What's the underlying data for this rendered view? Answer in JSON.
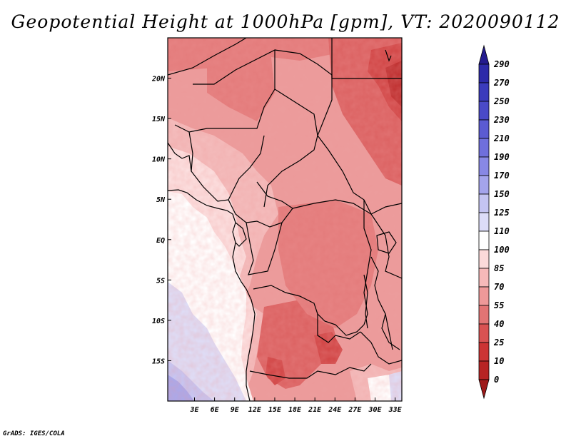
{
  "title": "Geopotential Height at 1000hPa [gpm], VT: 2020090112",
  "credit": "GrADS: IGES/COLA",
  "map": {
    "lon_range": [
      -1,
      34
    ],
    "lat_range": [
      -20,
      25
    ],
    "x_ticks": [
      {
        "lon": 3,
        "label": "3E"
      },
      {
        "lon": 6,
        "label": "6E"
      },
      {
        "lon": 9,
        "label": "9E"
      },
      {
        "lon": 12,
        "label": "12E"
      },
      {
        "lon": 15,
        "label": "15E"
      },
      {
        "lon": 18,
        "label": "18E"
      },
      {
        "lon": 21,
        "label": "21E"
      },
      {
        "lon": 24,
        "label": "24E"
      },
      {
        "lon": 27,
        "label": "27E"
      },
      {
        "lon": 30,
        "label": "30E"
      },
      {
        "lon": 33,
        "label": "33E"
      }
    ],
    "y_ticks": [
      {
        "lat": 20,
        "label": "20N"
      },
      {
        "lat": 15,
        "label": "15N"
      },
      {
        "lat": 10,
        "label": "10N"
      },
      {
        "lat": 5,
        "label": "5N"
      },
      {
        "lat": 0,
        "label": "EQ"
      },
      {
        "lat": -5,
        "label": "5S"
      },
      {
        "lat": -10,
        "label": "10S"
      },
      {
        "lat": -15,
        "label": "15S"
      }
    ]
  },
  "colorbar": {
    "levels": [
      "290",
      "270",
      "250",
      "230",
      "210",
      "190",
      "170",
      "150",
      "125",
      "110",
      "100",
      "85",
      "70",
      "55",
      "40",
      "25",
      "10",
      "0"
    ],
    "colors": [
      "#241b8f",
      "#2d2aa9",
      "#3b3bbc",
      "#4a4ac8",
      "#5b5bd2",
      "#6f6fdc",
      "#8888e5",
      "#a4a4ec",
      "#c4c4f2",
      "#dcdcf8",
      "#ffffff",
      "#fbdada",
      "#f6b9b9",
      "#ee9999",
      "#e27474",
      "#d95252",
      "#cc3434",
      "#b72424",
      "#9e1a1a"
    ]
  },
  "field_colors": {
    "c85": "#f4bcbc",
    "c70": "#ec9c9c",
    "c55": "#e47c7c",
    "c40": "#dc6363",
    "c25": "#d24848",
    "c10": "#c03232",
    "c100": "#fce0e0",
    "c110": "#ffffff",
    "c125": "#dedef8",
    "c150": "#c6c6f3",
    "c170": "#a9a9ec"
  }
}
